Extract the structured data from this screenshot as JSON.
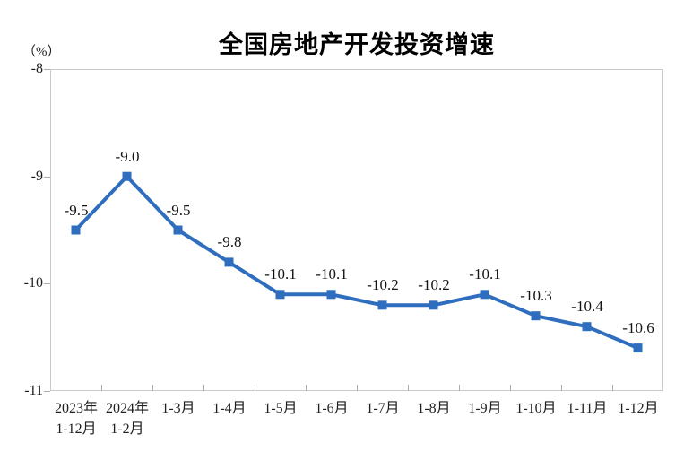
{
  "chart_data": {
    "type": "line",
    "title": "全国房地产开发投资增速",
    "ylabel": "（%）",
    "xlabel": "",
    "categories": [
      "2023年\n1-12月",
      "2024年\n1-2月",
      "1-3月",
      "1-4月",
      "1-5月",
      "1-6月",
      "1-7月",
      "1-8月",
      "1-9月",
      "1-10月",
      "1-11月",
      "1-12月"
    ],
    "values": [
      -9.5,
      -9.0,
      -9.5,
      -9.8,
      -10.1,
      -10.1,
      -10.2,
      -10.2,
      -10.1,
      -10.3,
      -10.4,
      -10.6
    ],
    "point_labels": [
      "-9.5",
      "-9.0",
      "-9.5",
      "-9.8",
      "-10.1",
      "-10.1",
      "-10.2",
      "-10.2",
      "-10.1",
      "-10.3",
      "-10.4",
      "-10.6"
    ],
    "ylim": [
      -11,
      -8
    ],
    "yticks": [
      -8,
      -9,
      -10,
      -11
    ],
    "ytick_labels": [
      "-8",
      "-9",
      "-10",
      "-11"
    ],
    "grid": false,
    "legend": false,
    "marker": "square",
    "colors": {
      "line": "#2F6EBE",
      "marker": "#2F6EBE",
      "label_text": "#141414",
      "axis_text": "#1f1f1f",
      "tick": "#ababab",
      "plot_border": "#c9c9c9",
      "background": "#ffffff",
      "title_text": "#000000"
    }
  }
}
